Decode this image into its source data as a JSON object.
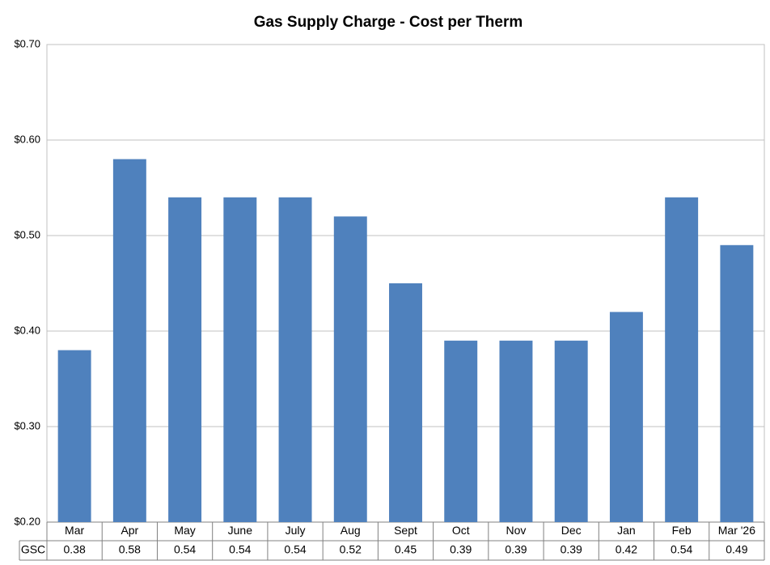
{
  "chart_data": {
    "type": "bar",
    "title": "Gas Supply Charge - Cost per Therm",
    "categories": [
      "Mar",
      "Apr",
      "May",
      "June",
      "July",
      "Aug",
      "Sept",
      "Oct",
      "Nov",
      "Dec",
      "Jan",
      "Feb",
      "Mar '26"
    ],
    "series": [
      {
        "name": "GSC",
        "color": "#4f81bd",
        "values": [
          0.38,
          0.58,
          0.54,
          0.54,
          0.54,
          0.52,
          0.45,
          0.39,
          0.39,
          0.39,
          0.42,
          0.54,
          0.49
        ]
      }
    ],
    "ylim": [
      0.2,
      0.7
    ],
    "yticks": [
      {
        "value": 0.2,
        "label": "$0.20"
      },
      {
        "value": 0.3,
        "label": "$0.30"
      },
      {
        "value": 0.4,
        "label": "$0.40"
      },
      {
        "value": 0.5,
        "label": "$0.50"
      },
      {
        "value": 0.6,
        "label": "$0.60"
      },
      {
        "value": 0.7,
        "label": "$0.70"
      }
    ],
    "grid": true
  }
}
